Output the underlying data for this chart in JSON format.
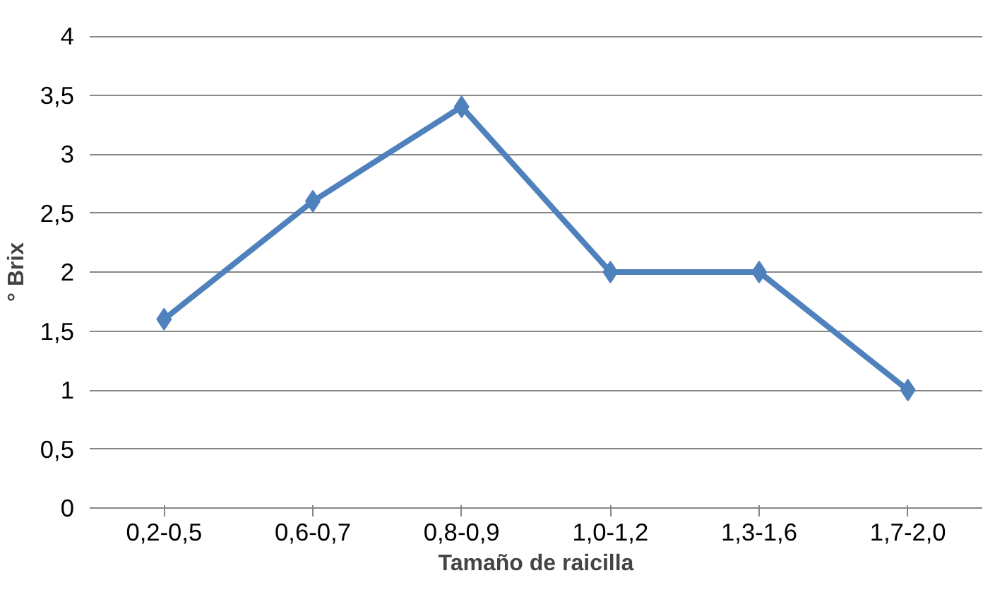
{
  "chart_data": {
    "type": "line",
    "xlabel": "Tamaño de raicilla",
    "ylabel": "° Brix",
    "categories": [
      "0,2-0,5",
      "0,6-0,7",
      "0,8-0,9",
      "1,0-1,2",
      "1,3-1,6",
      "1,7-2,0"
    ],
    "series": [
      {
        "color": "#4f81bd",
        "values": [
          1.6,
          2.6,
          3.4,
          2.0,
          2.0,
          1.0
        ]
      }
    ],
    "ylim": [
      0,
      4
    ],
    "yticks": [
      0,
      {
        "value": 0.5,
        "label": "0,5"
      },
      1,
      {
        "value": 1.5,
        "label": "1,5"
      },
      2,
      {
        "value": 2.5,
        "label": "2,5"
      },
      3,
      {
        "value": 3.5,
        "label": "3,5"
      },
      4
    ],
    "grid": "y",
    "marker": "diamond",
    "line_style": "solid"
  }
}
